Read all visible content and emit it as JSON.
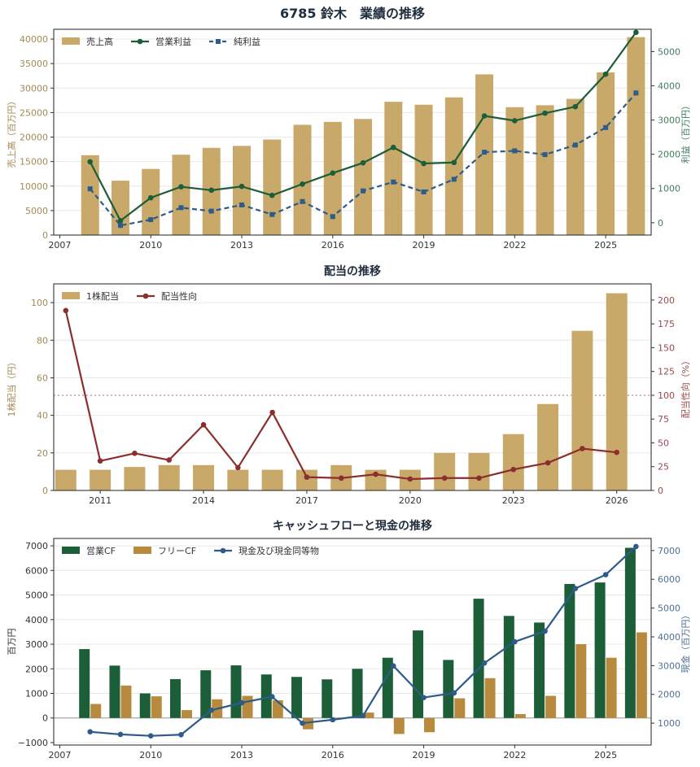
{
  "figure_title": "6785 鈴木　業績の推移",
  "colors": {
    "gold": "#c8a96a",
    "green": "#1b5e38",
    "blue": "#2d5b8a",
    "red": "#8b2e2e",
    "orange": "#b88a3e",
    "axis_gold": "#a38a55",
    "axis_green": "#3f7e5e",
    "axis_blue": "#4f6f95",
    "axis_red": "#9b4a4a",
    "grid": "#e8e8e8",
    "title": "#1f2d3d"
  },
  "chart_data": [
    {
      "type": "bar",
      "title": "",
      "xlim": [
        2006.8,
        2026.5
      ],
      "xticks": [
        2007,
        2010,
        2013,
        2016,
        2019,
        2022,
        2025
      ],
      "years": [
        2008,
        2009,
        2010,
        2011,
        2012,
        2013,
        2014,
        2015,
        2016,
        2017,
        2018,
        2019,
        2020,
        2021,
        2022,
        2023,
        2024,
        2025,
        2026
      ],
      "ylabel": "売上高（百万円）",
      "ylim": [
        0,
        42000
      ],
      "yticks": [
        0,
        5000,
        10000,
        15000,
        20000,
        25000,
        30000,
        35000,
        40000
      ],
      "y2label": "利益（百万円）",
      "y2lim": [
        -360,
        5650
      ],
      "y2ticks": [
        0,
        1000,
        2000,
        3000,
        4000,
        5000
      ],
      "series": [
        {
          "name": "売上高",
          "kind": "bar",
          "axis": "left",
          "color": "#c8a96a",
          "values": [
            16300,
            11100,
            13500,
            16400,
            17800,
            18200,
            19500,
            22500,
            23100,
            23700,
            27200,
            26600,
            28100,
            32800,
            26100,
            26500,
            27800,
            33200,
            40400
          ]
        },
        {
          "name": "営業利益",
          "kind": "line",
          "axis": "right",
          "color": "#1b5e38",
          "marker": "circle",
          "values": [
            1780,
            60,
            730,
            1050,
            950,
            1060,
            800,
            1130,
            1450,
            1750,
            2200,
            1730,
            1760,
            3120,
            2980,
            3200,
            3390,
            4340,
            5560
          ]
        },
        {
          "name": "純利益",
          "kind": "line",
          "axis": "right",
          "color": "#2d5b8a",
          "marker": "square",
          "dashed": true,
          "values": [
            990,
            -80,
            90,
            440,
            340,
            520,
            240,
            620,
            180,
            930,
            1190,
            900,
            1270,
            2060,
            2100,
            1990,
            2270,
            2780,
            3790
          ]
        }
      ],
      "hline": 0
    },
    {
      "type": "bar",
      "title": "配当の推移",
      "xlim": [
        2009.65,
        2027.0
      ],
      "xticks": [
        2011,
        2014,
        2017,
        2020,
        2023,
        2026
      ],
      "years": [
        2010,
        2011,
        2012,
        2013,
        2014,
        2015,
        2016,
        2017,
        2018,
        2019,
        2020,
        2021,
        2022,
        2023,
        2024,
        2025,
        2026
      ],
      "ylabel": "1株配当（円）",
      "ylim": [
        0,
        110
      ],
      "yticks": [
        0,
        20,
        40,
        60,
        80,
        100
      ],
      "y2label": "配当性向（%）",
      "y2lim": [
        0,
        217
      ],
      "y2ticks": [
        0,
        25,
        50,
        75,
        100,
        125,
        150,
        175,
        200
      ],
      "series": [
        {
          "name": "1株配当",
          "kind": "bar",
          "axis": "left",
          "color": "#c8a96a",
          "values": [
            11,
            11,
            12.5,
            13.5,
            13.5,
            11,
            11,
            11,
            13.5,
            11,
            11,
            20,
            20,
            30,
            46,
            85,
            105
          ]
        },
        {
          "name": "配当性向",
          "kind": "line",
          "axis": "right",
          "color": "#8b2e2e",
          "marker": "circle",
          "values": [
            189,
            31,
            39,
            32,
            69,
            24,
            82,
            14,
            13,
            17,
            12,
            13,
            13,
            22,
            29,
            44,
            40
          ]
        }
      ],
      "hline_right": 100
    },
    {
      "type": "bar",
      "title": "キャッシュフローと現金の推移",
      "xlim": [
        2006.8,
        2026.5
      ],
      "xticks": [
        2007,
        2010,
        2013,
        2016,
        2019,
        2022,
        2025
      ],
      "years": [
        2008,
        2009,
        2010,
        2011,
        2012,
        2013,
        2014,
        2015,
        2016,
        2017,
        2018,
        2019,
        2020,
        2021,
        2022,
        2023,
        2024,
        2025,
        2026
      ],
      "ylabel": "百万円",
      "ylim": [
        -1100,
        7300
      ],
      "yticks": [
        -1000,
        0,
        1000,
        2000,
        3000,
        4000,
        5000,
        6000,
        7000
      ],
      "y2label": "現金（百万円）",
      "y2lim": [
        240,
        7420
      ],
      "y2ticks": [
        1000,
        2000,
        3000,
        4000,
        5000,
        6000,
        7000
      ],
      "series": [
        {
          "name": "営業CF",
          "kind": "bar",
          "axis": "left",
          "color": "#1b5e38",
          "values": [
            2800,
            2130,
            1000,
            1580,
            1940,
            2140,
            1770,
            1670,
            1570,
            2000,
            2450,
            3560,
            2360,
            4850,
            4150,
            3880,
            5450,
            5510,
            6920
          ]
        },
        {
          "name": "フリーCF",
          "kind": "bar",
          "axis": "left",
          "color": "#b88a3e",
          "values": [
            570,
            1320,
            880,
            320,
            760,
            900,
            720,
            -460,
            10,
            220,
            -650,
            -580,
            800,
            1620,
            160,
            900,
            3000,
            2450,
            3480
          ]
        },
        {
          "name": "現金及び現金同等物",
          "kind": "line",
          "axis": "right",
          "color": "#2d5b8a",
          "marker": "circle",
          "values": [
            700,
            610,
            560,
            600,
            1450,
            1710,
            1920,
            1000,
            1120,
            1260,
            2990,
            1890,
            2050,
            3090,
            3830,
            4200,
            5680,
            6160,
            7140
          ]
        }
      ],
      "hline": 0
    }
  ]
}
